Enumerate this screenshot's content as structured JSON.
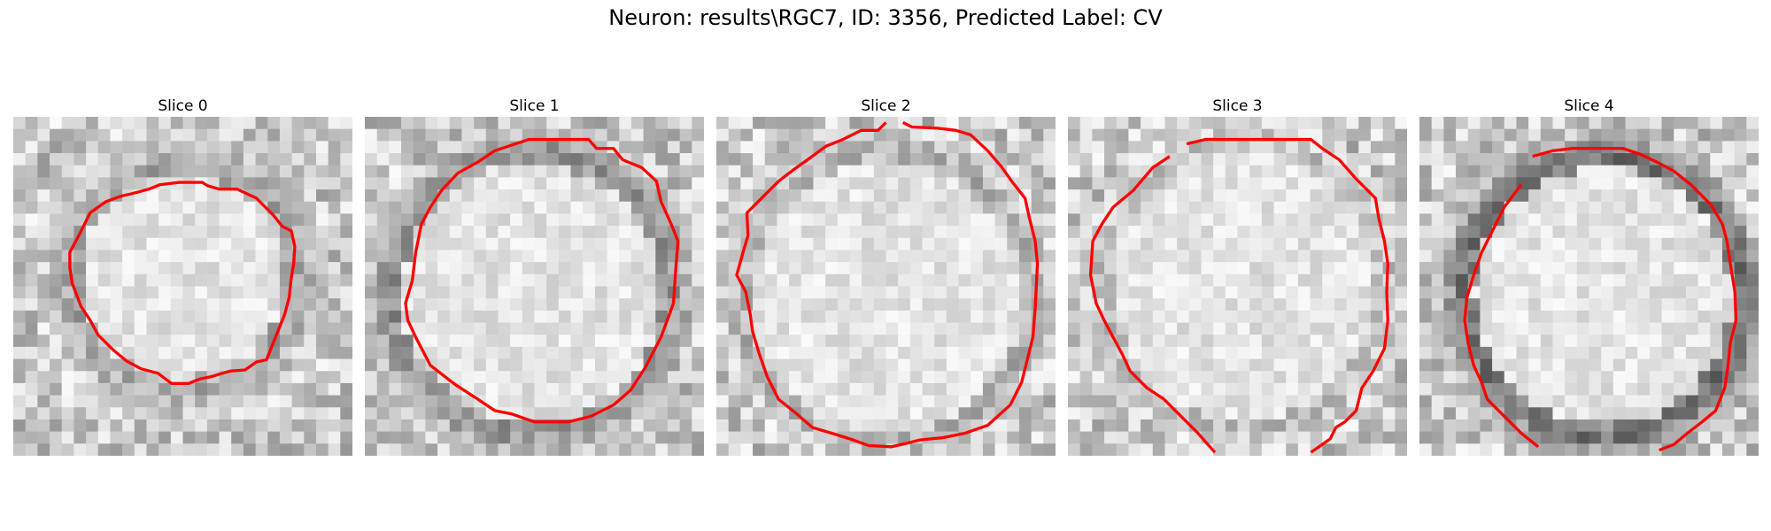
{
  "figure": {
    "title": "Neuron: results\\RGC7, ID: 3356, Predicted Label: CV"
  },
  "panels": [
    {
      "title": "Slice 0",
      "contour_color": "#ff0000"
    },
    {
      "title": "Slice 1",
      "contour_color": "#ff0000"
    },
    {
      "title": "Slice 2",
      "contour_color": "#ff0000"
    },
    {
      "title": "Slice 3",
      "contour_color": "#ff0000"
    },
    {
      "title": "Slice 4",
      "contour_color": "#ff0000"
    }
  ]
}
